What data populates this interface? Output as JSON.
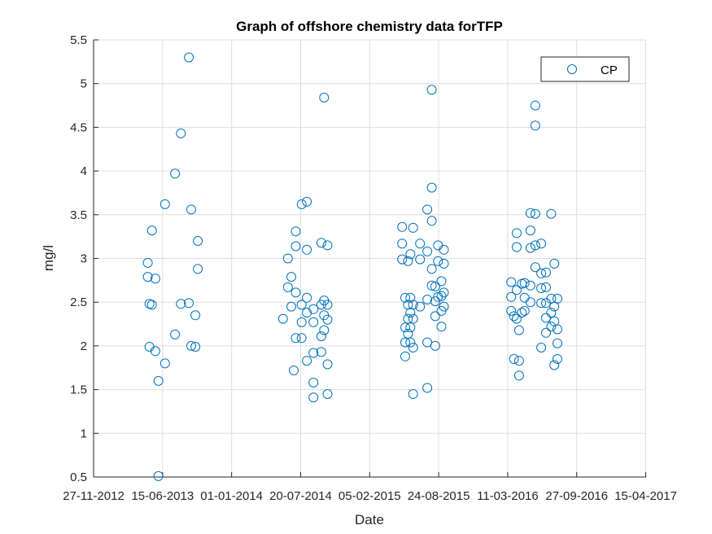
{
  "colors": {
    "marker": "#0072BD",
    "grid": "#dfdfdf",
    "axis": "#262626"
  },
  "chart_data": {
    "type": "scatter",
    "title": "Graph of offshore chemistry data forTFP",
    "xlabel": "Date",
    "ylabel": "mg/l",
    "legend": {
      "position": "top-right",
      "entries": [
        "CP"
      ]
    },
    "grid": true,
    "xlim": [
      "2012-11-27",
      "2017-04-16"
    ],
    "ylim": [
      0.5,
      5.5
    ],
    "xticks": [
      "2012-11-27",
      "2013-06-15",
      "2014-01-01",
      "2014-07-20",
      "2015-02-05",
      "2015-08-24",
      "2016-03-11",
      "2016-09-27",
      "2017-04-15"
    ],
    "xtick_labels": [
      "27-11-2012",
      "15-06-2013",
      "01-01-2014",
      "20-07-2014",
      "05-02-2015",
      "24-08-2015",
      "11-03-2016",
      "27-09-2016",
      "15-04-2017"
    ],
    "yticks": [
      0.5,
      1,
      1.5,
      2,
      2.5,
      3,
      3.5,
      4,
      4.5,
      5,
      5.5
    ],
    "ytick_labels": [
      "0.5",
      "1",
      "1.5",
      "2",
      "2.5",
      "3",
      "3.5",
      "4",
      "4.5",
      "5",
      "5.5"
    ],
    "series": [
      {
        "name": "CP",
        "marker": "circle",
        "points": [
          {
            "x": "2013-05-03",
            "y": 2.95
          },
          {
            "x": "2013-05-03",
            "y": 2.79
          },
          {
            "x": "2013-05-08",
            "y": 2.48
          },
          {
            "x": "2013-05-08",
            "y": 1.99
          },
          {
            "x": "2013-05-15",
            "y": 3.32
          },
          {
            "x": "2013-05-15",
            "y": 2.47
          },
          {
            "x": "2013-05-25",
            "y": 2.77
          },
          {
            "x": "2013-05-25",
            "y": 1.94
          },
          {
            "x": "2013-06-03",
            "y": 1.6
          },
          {
            "x": "2013-06-03",
            "y": 0.51
          },
          {
            "x": "2013-06-22",
            "y": 3.62
          },
          {
            "x": "2013-06-22",
            "y": 1.8
          },
          {
            "x": "2013-07-21",
            "y": 3.97
          },
          {
            "x": "2013-07-21",
            "y": 2.13
          },
          {
            "x": "2013-08-07",
            "y": 4.43
          },
          {
            "x": "2013-08-07",
            "y": 2.48
          },
          {
            "x": "2013-08-30",
            "y": 5.3
          },
          {
            "x": "2013-08-30",
            "y": 2.49
          },
          {
            "x": "2013-09-06",
            "y": 3.56
          },
          {
            "x": "2013-09-06",
            "y": 2.0
          },
          {
            "x": "2013-09-18",
            "y": 2.35
          },
          {
            "x": "2013-09-18",
            "y": 1.99
          },
          {
            "x": "2013-09-25",
            "y": 3.2
          },
          {
            "x": "2013-09-25",
            "y": 2.88
          },
          {
            "x": "2014-05-30",
            "y": 2.31
          },
          {
            "x": "2014-06-13",
            "y": 3.0
          },
          {
            "x": "2014-06-13",
            "y": 2.67
          },
          {
            "x": "2014-06-23",
            "y": 2.79
          },
          {
            "x": "2014-06-23",
            "y": 2.45
          },
          {
            "x": "2014-06-30",
            "y": 1.72
          },
          {
            "x": "2014-07-06",
            "y": 3.31
          },
          {
            "x": "2014-07-06",
            "y": 3.14
          },
          {
            "x": "2014-07-06",
            "y": 2.61
          },
          {
            "x": "2014-07-06",
            "y": 2.09
          },
          {
            "x": "2014-07-23",
            "y": 3.62
          },
          {
            "x": "2014-07-23",
            "y": 2.47
          },
          {
            "x": "2014-07-23",
            "y": 2.27
          },
          {
            "x": "2014-07-23",
            "y": 2.09
          },
          {
            "x": "2014-08-07",
            "y": 3.65
          },
          {
            "x": "2014-08-07",
            "y": 3.1
          },
          {
            "x": "2014-08-07",
            "y": 2.55
          },
          {
            "x": "2014-08-07",
            "y": 2.38
          },
          {
            "x": "2014-08-07",
            "y": 1.83
          },
          {
            "x": "2014-08-26",
            "y": 2.42
          },
          {
            "x": "2014-08-26",
            "y": 2.27
          },
          {
            "x": "2014-08-26",
            "y": 1.92
          },
          {
            "x": "2014-08-26",
            "y": 1.58
          },
          {
            "x": "2014-08-26",
            "y": 1.41
          },
          {
            "x": "2014-09-18",
            "y": 3.18
          },
          {
            "x": "2014-09-18",
            "y": 2.47
          },
          {
            "x": "2014-09-18",
            "y": 2.11
          },
          {
            "x": "2014-09-18",
            "y": 1.93
          },
          {
            "x": "2014-09-26",
            "y": 4.84
          },
          {
            "x": "2014-09-26",
            "y": 2.52
          },
          {
            "x": "2014-09-26",
            "y": 2.35
          },
          {
            "x": "2014-09-26",
            "y": 2.18
          },
          {
            "x": "2014-10-06",
            "y": 3.15
          },
          {
            "x": "2014-10-06",
            "y": 2.47
          },
          {
            "x": "2014-10-06",
            "y": 2.3
          },
          {
            "x": "2014-10-06",
            "y": 1.79
          },
          {
            "x": "2014-10-06",
            "y": 1.45
          },
          {
            "x": "2015-05-10",
            "y": 3.36
          },
          {
            "x": "2015-05-10",
            "y": 3.17
          },
          {
            "x": "2015-05-10",
            "y": 2.99
          },
          {
            "x": "2015-05-19",
            "y": 2.55
          },
          {
            "x": "2015-05-19",
            "y": 2.21
          },
          {
            "x": "2015-05-19",
            "y": 2.04
          },
          {
            "x": "2015-05-19",
            "y": 1.88
          },
          {
            "x": "2015-05-27",
            "y": 2.97
          },
          {
            "x": "2015-05-27",
            "y": 2.47
          },
          {
            "x": "2015-05-27",
            "y": 2.31
          },
          {
            "x": "2015-05-27",
            "y": 2.14
          },
          {
            "x": "2015-06-03",
            "y": 3.05
          },
          {
            "x": "2015-06-03",
            "y": 2.55
          },
          {
            "x": "2015-06-03",
            "y": 2.38
          },
          {
            "x": "2015-06-03",
            "y": 2.21
          },
          {
            "x": "2015-06-03",
            "y": 2.04
          },
          {
            "x": "2015-06-11",
            "y": 3.35
          },
          {
            "x": "2015-06-11",
            "y": 2.47
          },
          {
            "x": "2015-06-11",
            "y": 2.31
          },
          {
            "x": "2015-06-11",
            "y": 1.98
          },
          {
            "x": "2015-06-11",
            "y": 1.45
          },
          {
            "x": "2015-07-01",
            "y": 3.17
          },
          {
            "x": "2015-07-01",
            "y": 2.99
          },
          {
            "x": "2015-07-01",
            "y": 2.45
          },
          {
            "x": "2015-07-22",
            "y": 3.56
          },
          {
            "x": "2015-07-22",
            "y": 3.08
          },
          {
            "x": "2015-07-22",
            "y": 2.53
          },
          {
            "x": "2015-07-22",
            "y": 2.04
          },
          {
            "x": "2015-07-22",
            "y": 1.52
          },
          {
            "x": "2015-08-04",
            "y": 4.93
          },
          {
            "x": "2015-08-04",
            "y": 3.81
          },
          {
            "x": "2015-08-04",
            "y": 3.43
          },
          {
            "x": "2015-08-04",
            "y": 2.88
          },
          {
            "x": "2015-08-04",
            "y": 2.69
          },
          {
            "x": "2015-08-14",
            "y": 2.68
          },
          {
            "x": "2015-08-14",
            "y": 2.51
          },
          {
            "x": "2015-08-14",
            "y": 2.34
          },
          {
            "x": "2015-08-14",
            "y": 2.0
          },
          {
            "x": "2015-08-22",
            "y": 3.15
          },
          {
            "x": "2015-08-22",
            "y": 2.97
          },
          {
            "x": "2015-08-22",
            "y": 2.56
          },
          {
            "x": "2015-09-01",
            "y": 2.74
          },
          {
            "x": "2015-09-01",
            "y": 2.57
          },
          {
            "x": "2015-09-01",
            "y": 2.4
          },
          {
            "x": "2015-09-01",
            "y": 2.22
          },
          {
            "x": "2015-09-08",
            "y": 3.1
          },
          {
            "x": "2015-09-08",
            "y": 2.94
          },
          {
            "x": "2015-09-08",
            "y": 2.61
          },
          {
            "x": "2015-09-08",
            "y": 2.45
          },
          {
            "x": "2016-03-21",
            "y": 2.73
          },
          {
            "x": "2016-03-21",
            "y": 2.56
          },
          {
            "x": "2016-03-21",
            "y": 2.4
          },
          {
            "x": "2016-03-29",
            "y": 2.34
          },
          {
            "x": "2016-03-29",
            "y": 1.85
          },
          {
            "x": "2016-04-06",
            "y": 3.29
          },
          {
            "x": "2016-04-06",
            "y": 3.13
          },
          {
            "x": "2016-04-06",
            "y": 2.64
          },
          {
            "x": "2016-04-06",
            "y": 2.31
          },
          {
            "x": "2016-04-13",
            "y": 2.18
          },
          {
            "x": "2016-04-13",
            "y": 1.83
          },
          {
            "x": "2016-04-13",
            "y": 1.66
          },
          {
            "x": "2016-04-21",
            "y": 2.71
          },
          {
            "x": "2016-04-21",
            "y": 2.38
          },
          {
            "x": "2016-04-29",
            "y": 2.72
          },
          {
            "x": "2016-04-29",
            "y": 2.55
          },
          {
            "x": "2016-04-29",
            "y": 2.4
          },
          {
            "x": "2016-05-16",
            "y": 3.52
          },
          {
            "x": "2016-05-16",
            "y": 3.32
          },
          {
            "x": "2016-05-16",
            "y": 3.12
          },
          {
            "x": "2016-05-16",
            "y": 2.69
          },
          {
            "x": "2016-05-16",
            "y": 2.5
          },
          {
            "x": "2016-05-30",
            "y": 4.75
          },
          {
            "x": "2016-05-30",
            "y": 4.52
          },
          {
            "x": "2016-05-30",
            "y": 3.51
          },
          {
            "x": "2016-05-30",
            "y": 3.15
          },
          {
            "x": "2016-05-30",
            "y": 2.9
          },
          {
            "x": "2016-06-16",
            "y": 3.17
          },
          {
            "x": "2016-06-16",
            "y": 2.83
          },
          {
            "x": "2016-06-16",
            "y": 2.66
          },
          {
            "x": "2016-06-16",
            "y": 2.49
          },
          {
            "x": "2016-06-16",
            "y": 1.98
          },
          {
            "x": "2016-06-30",
            "y": 2.84
          },
          {
            "x": "2016-06-30",
            "y": 2.67
          },
          {
            "x": "2016-06-30",
            "y": 2.49
          },
          {
            "x": "2016-06-30",
            "y": 2.32
          },
          {
            "x": "2016-06-30",
            "y": 2.15
          },
          {
            "x": "2016-07-15",
            "y": 3.51
          },
          {
            "x": "2016-07-15",
            "y": 2.54
          },
          {
            "x": "2016-07-15",
            "y": 2.38
          },
          {
            "x": "2016-07-15",
            "y": 2.22
          },
          {
            "x": "2016-07-24",
            "y": 2.94
          },
          {
            "x": "2016-07-24",
            "y": 2.45
          },
          {
            "x": "2016-07-24",
            "y": 2.28
          },
          {
            "x": "2016-07-24",
            "y": 1.78
          },
          {
            "x": "2016-08-02",
            "y": 2.54
          },
          {
            "x": "2016-08-02",
            "y": 2.19
          },
          {
            "x": "2016-08-02",
            "y": 2.03
          },
          {
            "x": "2016-08-02",
            "y": 1.85
          }
        ]
      }
    ]
  }
}
